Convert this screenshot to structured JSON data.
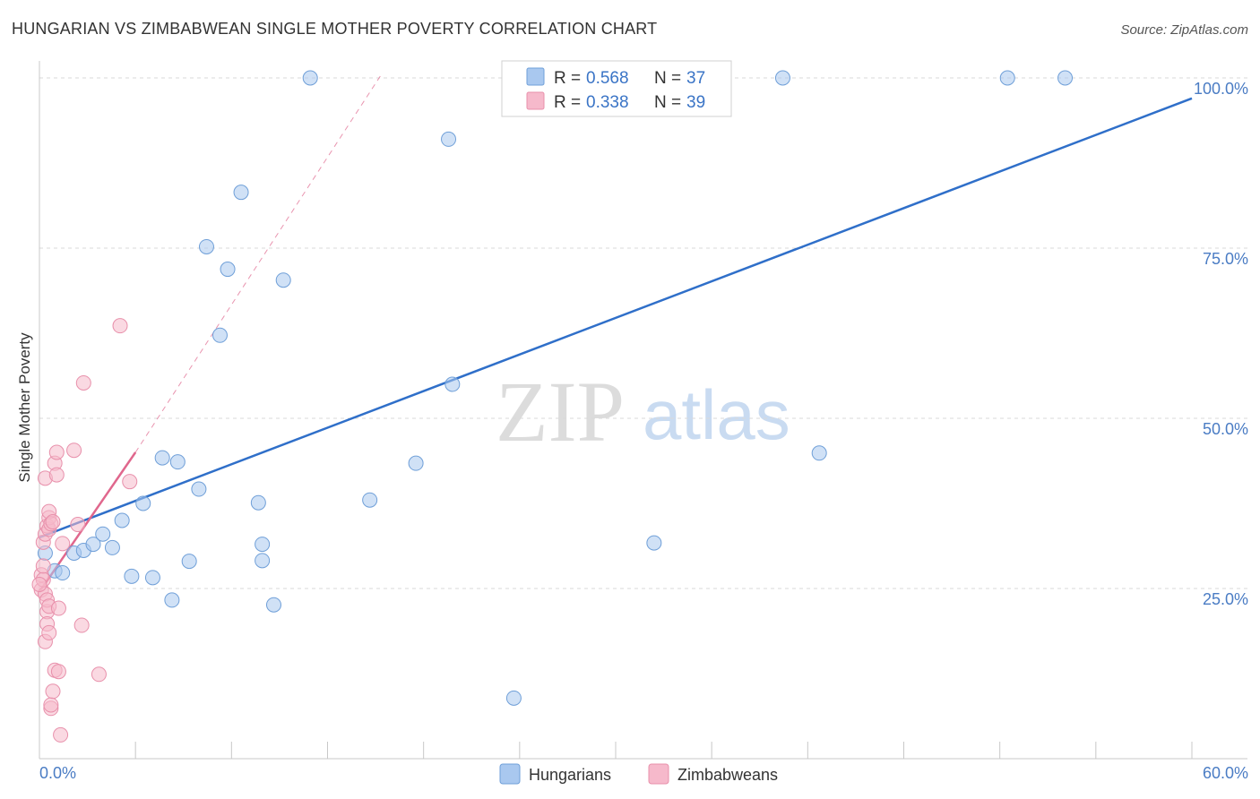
{
  "title": "HUNGARIAN VS ZIMBABWEAN SINGLE MOTHER POVERTY CORRELATION CHART",
  "source": "Source: ZipAtlas.com",
  "watermark": {
    "zip": "ZIP",
    "atlas": "atlas"
  },
  "colors": {
    "hungarians_fill": "#a9c8ef",
    "hungarians_stroke": "#6f9fd8",
    "hungarians_line": "#2f6fc9",
    "zimbabweans_fill": "#f6b9cb",
    "zimbabweans_stroke": "#e890ab",
    "zimbabweans_line": "#e0678d",
    "tick_text": "#4a7cc4",
    "grid": "#d9d9d9"
  },
  "stats": {
    "r_label": "R =",
    "n_label": "N =",
    "hungarians": {
      "r": "0.568",
      "n": "37"
    },
    "zimbabweans": {
      "r": "0.338",
      "n": "39"
    }
  },
  "chart_data": {
    "type": "scatter",
    "title": "HUNGARIAN VS ZIMBABWEAN SINGLE MOTHER POVERTY CORRELATION CHART",
    "xlabel": "",
    "ylabel": "Single Mother Poverty",
    "xlim": [
      0,
      60
    ],
    "ylim": [
      0,
      102.5
    ],
    "x_tick_labels": {
      "min": "0.0%",
      "max": "60.0%"
    },
    "y_ticks": [
      {
        "value": 25,
        "label": "25.0%"
      },
      {
        "value": 50,
        "label": "50.0%"
      },
      {
        "value": 75,
        "label": "75.0%"
      },
      {
        "value": 100,
        "label": "100.0%"
      }
    ],
    "grid": true,
    "legend_position": "bottom",
    "series": [
      {
        "name": "Hungarians",
        "r": 0.568,
        "n": 37,
        "points": [
          [
            0.3,
            30.2
          ],
          [
            0.8,
            27.6
          ],
          [
            1.2,
            27.3
          ],
          [
            1.8,
            30.2
          ],
          [
            2.3,
            30.6
          ],
          [
            2.8,
            31.5
          ],
          [
            3.3,
            33.0
          ],
          [
            3.8,
            31.0
          ],
          [
            4.3,
            35.0
          ],
          [
            4.8,
            26.8
          ],
          [
            5.4,
            37.5
          ],
          [
            5.9,
            26.6
          ],
          [
            6.4,
            44.2
          ],
          [
            6.9,
            23.3
          ],
          [
            7.2,
            43.6
          ],
          [
            7.8,
            29.0
          ],
          [
            8.3,
            39.6
          ],
          [
            8.7,
            75.2
          ],
          [
            9.4,
            62.2
          ],
          [
            9.8,
            71.9
          ],
          [
            10.5,
            83.2
          ],
          [
            11.6,
            31.5
          ],
          [
            11.4,
            37.6
          ],
          [
            11.6,
            29.1
          ],
          [
            12.2,
            22.6
          ],
          [
            12.7,
            70.3
          ],
          [
            14.1,
            100.0
          ],
          [
            17.2,
            38.0
          ],
          [
            19.6,
            43.4
          ],
          [
            21.3,
            91.0
          ],
          [
            21.5,
            55.0
          ],
          [
            24.7,
            8.9
          ],
          [
            32.0,
            31.7
          ],
          [
            38.7,
            100.0
          ],
          [
            40.6,
            44.9
          ],
          [
            50.4,
            100.0
          ],
          [
            53.4,
            100.0
          ]
        ]
      },
      {
        "name": "Zimbabweans",
        "r": 0.338,
        "n": 39,
        "points": [
          [
            0.1,
            27.0
          ],
          [
            0.1,
            24.8
          ],
          [
            0.2,
            26.3
          ],
          [
            0.2,
            31.8
          ],
          [
            0.2,
            28.3
          ],
          [
            0.3,
            33.0
          ],
          [
            0.3,
            24.2
          ],
          [
            0.3,
            17.2
          ],
          [
            0.3,
            41.2
          ],
          [
            0.4,
            21.6
          ],
          [
            0.4,
            34.2
          ],
          [
            0.4,
            23.3
          ],
          [
            0.4,
            19.8
          ],
          [
            0.5,
            33.7
          ],
          [
            0.5,
            35.4
          ],
          [
            0.5,
            18.5
          ],
          [
            0.5,
            22.4
          ],
          [
            0.5,
            36.3
          ],
          [
            0.6,
            7.4
          ],
          [
            0.6,
            34.5
          ],
          [
            0.6,
            7.9
          ],
          [
            0.7,
            9.9
          ],
          [
            0.7,
            34.8
          ],
          [
            0.8,
            13.0
          ],
          [
            0.8,
            43.4
          ],
          [
            0.9,
            45.0
          ],
          [
            0.9,
            41.7
          ],
          [
            1.0,
            22.1
          ],
          [
            1.0,
            12.8
          ],
          [
            1.1,
            3.5
          ],
          [
            1.2,
            31.6
          ],
          [
            1.8,
            45.3
          ],
          [
            2.0,
            34.4
          ],
          [
            2.2,
            19.6
          ],
          [
            2.3,
            55.2
          ],
          [
            3.1,
            12.4
          ],
          [
            4.2,
            63.6
          ],
          [
            4.7,
            40.7
          ],
          [
            0.0,
            25.6
          ]
        ]
      }
    ],
    "trend_lines": [
      {
        "series": "Hungarians",
        "x": [
          0,
          60
        ],
        "y": [
          32.5,
          97.0
        ],
        "style": "solid"
      },
      {
        "series": "Zimbabweans",
        "x": [
          0,
          5.0
        ],
        "y": [
          24.5,
          45.0
        ],
        "style": "solid"
      },
      {
        "series": "Zimbabweans",
        "x": [
          5.0,
          17.8
        ],
        "y": [
          45.0,
          100.5
        ],
        "style": "dashed"
      }
    ]
  },
  "legend": {
    "hungarians": "Hungarians",
    "zimbabweans": "Zimbabweans"
  }
}
